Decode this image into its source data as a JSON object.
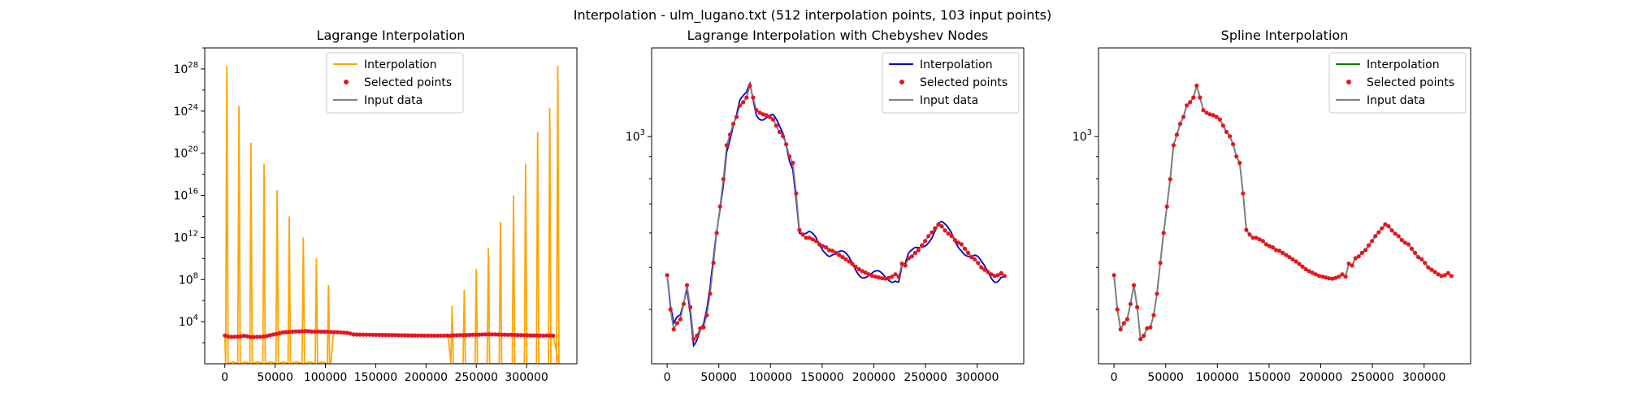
{
  "figure": {
    "suptitle": "Interpolation - ulm_lugano.txt (512 interpolation points, 103 input points)"
  },
  "chart_data": [
    {
      "type": "line",
      "title": "Lagrange Interpolation",
      "xlabel": "",
      "ylabel": "",
      "yscale": "log",
      "xlim": [
        -20000,
        350000
      ],
      "ylim": [
        1,
        1e+30
      ],
      "xticks": [
        0,
        50000,
        100000,
        150000,
        200000,
        250000,
        300000
      ],
      "yticks": [
        {
          "value": 10000.0,
          "base": "10",
          "exp": "4"
        },
        {
          "value": 100000000.0,
          "base": "10",
          "exp": "8"
        },
        {
          "value": 1000000000000.0,
          "base": "10",
          "exp": "12"
        },
        {
          "value": 1e+16,
          "base": "10",
          "exp": "16"
        },
        {
          "value": 1e+20,
          "base": "10",
          "exp": "20"
        },
        {
          "value": 1e+24,
          "base": "10",
          "exp": "24"
        },
        {
          "value": 1e+28,
          "base": "10",
          "exp": "28"
        }
      ],
      "legend": {
        "placement": "top-center",
        "entries": [
          "Interpolation",
          "Selected points",
          "Input data"
        ]
      },
      "colors": {
        "interpolation": "#ffa500",
        "selected": "#e8141c",
        "input": "#808080"
      },
      "series": [
        {
          "name": "Interpolation",
          "role": "interpolation",
          "oscillating": true,
          "left_peaks": [
            [
              2000,
              2e+28
            ],
            [
              14000,
              3e+24
            ],
            [
              26000,
              1e+21
            ],
            [
              39000,
              1e+19
            ],
            [
              52000,
              3e+16
            ],
            [
              64000,
              100000000000000.0
            ],
            [
              78000,
              1000000000000.0
            ],
            [
              91000,
              10000000000.0
            ],
            [
              103000,
              30000000.0
            ]
          ],
          "right_peaks": [
            [
              226000,
              300000.0
            ],
            [
              238000,
              10000000.0
            ],
            [
              250000,
              1000000000.0
            ],
            [
              262000,
              100000000000.0
            ],
            [
              274000,
              30000000000000.0
            ],
            [
              287000,
              1e+16
            ],
            [
              299000,
              1e+19
            ],
            [
              311000,
              1e+22
            ],
            [
              323000,
              2e+24
            ],
            [
              331000,
              2e+28
            ]
          ],
          "valley": 1
        },
        {
          "name": "Selected points",
          "role": "selected"
        },
        {
          "name": "Input data",
          "role": "input"
        }
      ]
    },
    {
      "type": "line",
      "title": "Lagrange Interpolation with Chebyshev Nodes",
      "xlabel": "",
      "ylabel": "",
      "yscale": "log",
      "xlim": [
        -15000,
        345000
      ],
      "ylim": [
        300,
        1600
      ],
      "xticks": [
        0,
        50000,
        100000,
        150000,
        200000,
        250000,
        300000
      ],
      "yticks": [
        {
          "value": 1000,
          "base": "10",
          "exp": "3"
        }
      ],
      "legend": {
        "placement": "top-right",
        "entries": [
          "Interpolation",
          "Selected points",
          "Input data"
        ]
      },
      "colors": {
        "interpolation": "#0000cc",
        "selected": "#e8141c",
        "input": "#808080"
      },
      "series": [
        {
          "name": "Interpolation",
          "role": "interpolation"
        },
        {
          "name": "Selected points",
          "role": "selected"
        },
        {
          "name": "Input data",
          "role": "input"
        }
      ]
    },
    {
      "type": "line",
      "title": "Spline Interpolation",
      "xlabel": "",
      "ylabel": "",
      "yscale": "log",
      "xlim": [
        -15000,
        345000
      ],
      "ylim": [
        300,
        1600
      ],
      "xticks": [
        0,
        50000,
        100000,
        150000,
        200000,
        250000,
        300000
      ],
      "yticks": [
        {
          "value": 1000,
          "base": "10",
          "exp": "3"
        }
      ],
      "legend": {
        "placement": "top-right",
        "entries": [
          "Interpolation",
          "Selected points",
          "Input data"
        ]
      },
      "colors": {
        "interpolation": "#008000",
        "selected": "#e8141c",
        "input": "#808080"
      },
      "series": [
        {
          "name": "Interpolation",
          "role": "interpolation"
        },
        {
          "name": "Selected points",
          "role": "selected"
        },
        {
          "name": "Input data",
          "role": "input"
        }
      ]
    }
  ],
  "elevation_profile": {
    "x": [
      0,
      3200,
      6400,
      9600,
      12800,
      16000,
      19200,
      22400,
      25600,
      28800,
      32000,
      35200,
      38400,
      41600,
      44800,
      48000,
      51200,
      54400,
      57600,
      60800,
      64000,
      67200,
      70400,
      73600,
      76800,
      80000,
      83200,
      86400,
      89600,
      92800,
      96000,
      99200,
      102400,
      105600,
      108800,
      112000,
      115200,
      118400,
      121600,
      124800,
      128000,
      131200,
      134400,
      137600,
      140800,
      144000,
      147200,
      150400,
      153600,
      156800,
      160000,
      163200,
      166400,
      169600,
      172800,
      176000,
      179200,
      182400,
      185600,
      188800,
      192000,
      195200,
      198400,
      201600,
      204800,
      208000,
      211200,
      214400,
      217600,
      220800,
      224000,
      227200,
      230400,
      233600,
      236800,
      240000,
      243200,
      246400,
      249600,
      252800,
      256000,
      259200,
      262400,
      265600,
      268800,
      272000,
      275200,
      278400,
      281600,
      284800,
      288000,
      291200,
      294400,
      297600,
      300800,
      304000,
      307200,
      310400,
      313600,
      316800,
      320000,
      323200,
      326400
    ],
    "y": [
      480,
      400,
      360,
      372,
      380,
      412,
      455,
      405,
      342,
      348,
      362,
      364,
      388,
      435,
      512,
      600,
      690,
      798,
      955,
      1010,
      1070,
      1110,
      1180,
      1200,
      1230,
      1310,
      1230,
      1150,
      1135,
      1125,
      1120,
      1110,
      1095,
      1060,
      1025,
      1002,
      960,
      900,
      870,
      740,
      610,
      595,
      585,
      585,
      580,
      575,
      565,
      560,
      556,
      548,
      546,
      540,
      534,
      528,
      522,
      516,
      509,
      502,
      495,
      490,
      486,
      482,
      478,
      476,
      474,
      472,
      471,
      473,
      476,
      482,
      476,
      510,
      505,
      525,
      530,
      540,
      548,
      562,
      575,
      590,
      602,
      615,
      628,
      622,
      608,
      598,
      590,
      578,
      570,
      565,
      552,
      540,
      528,
      522,
      512,
      500,
      494,
      488,
      482,
      478,
      480,
      485,
      478
    ]
  }
}
